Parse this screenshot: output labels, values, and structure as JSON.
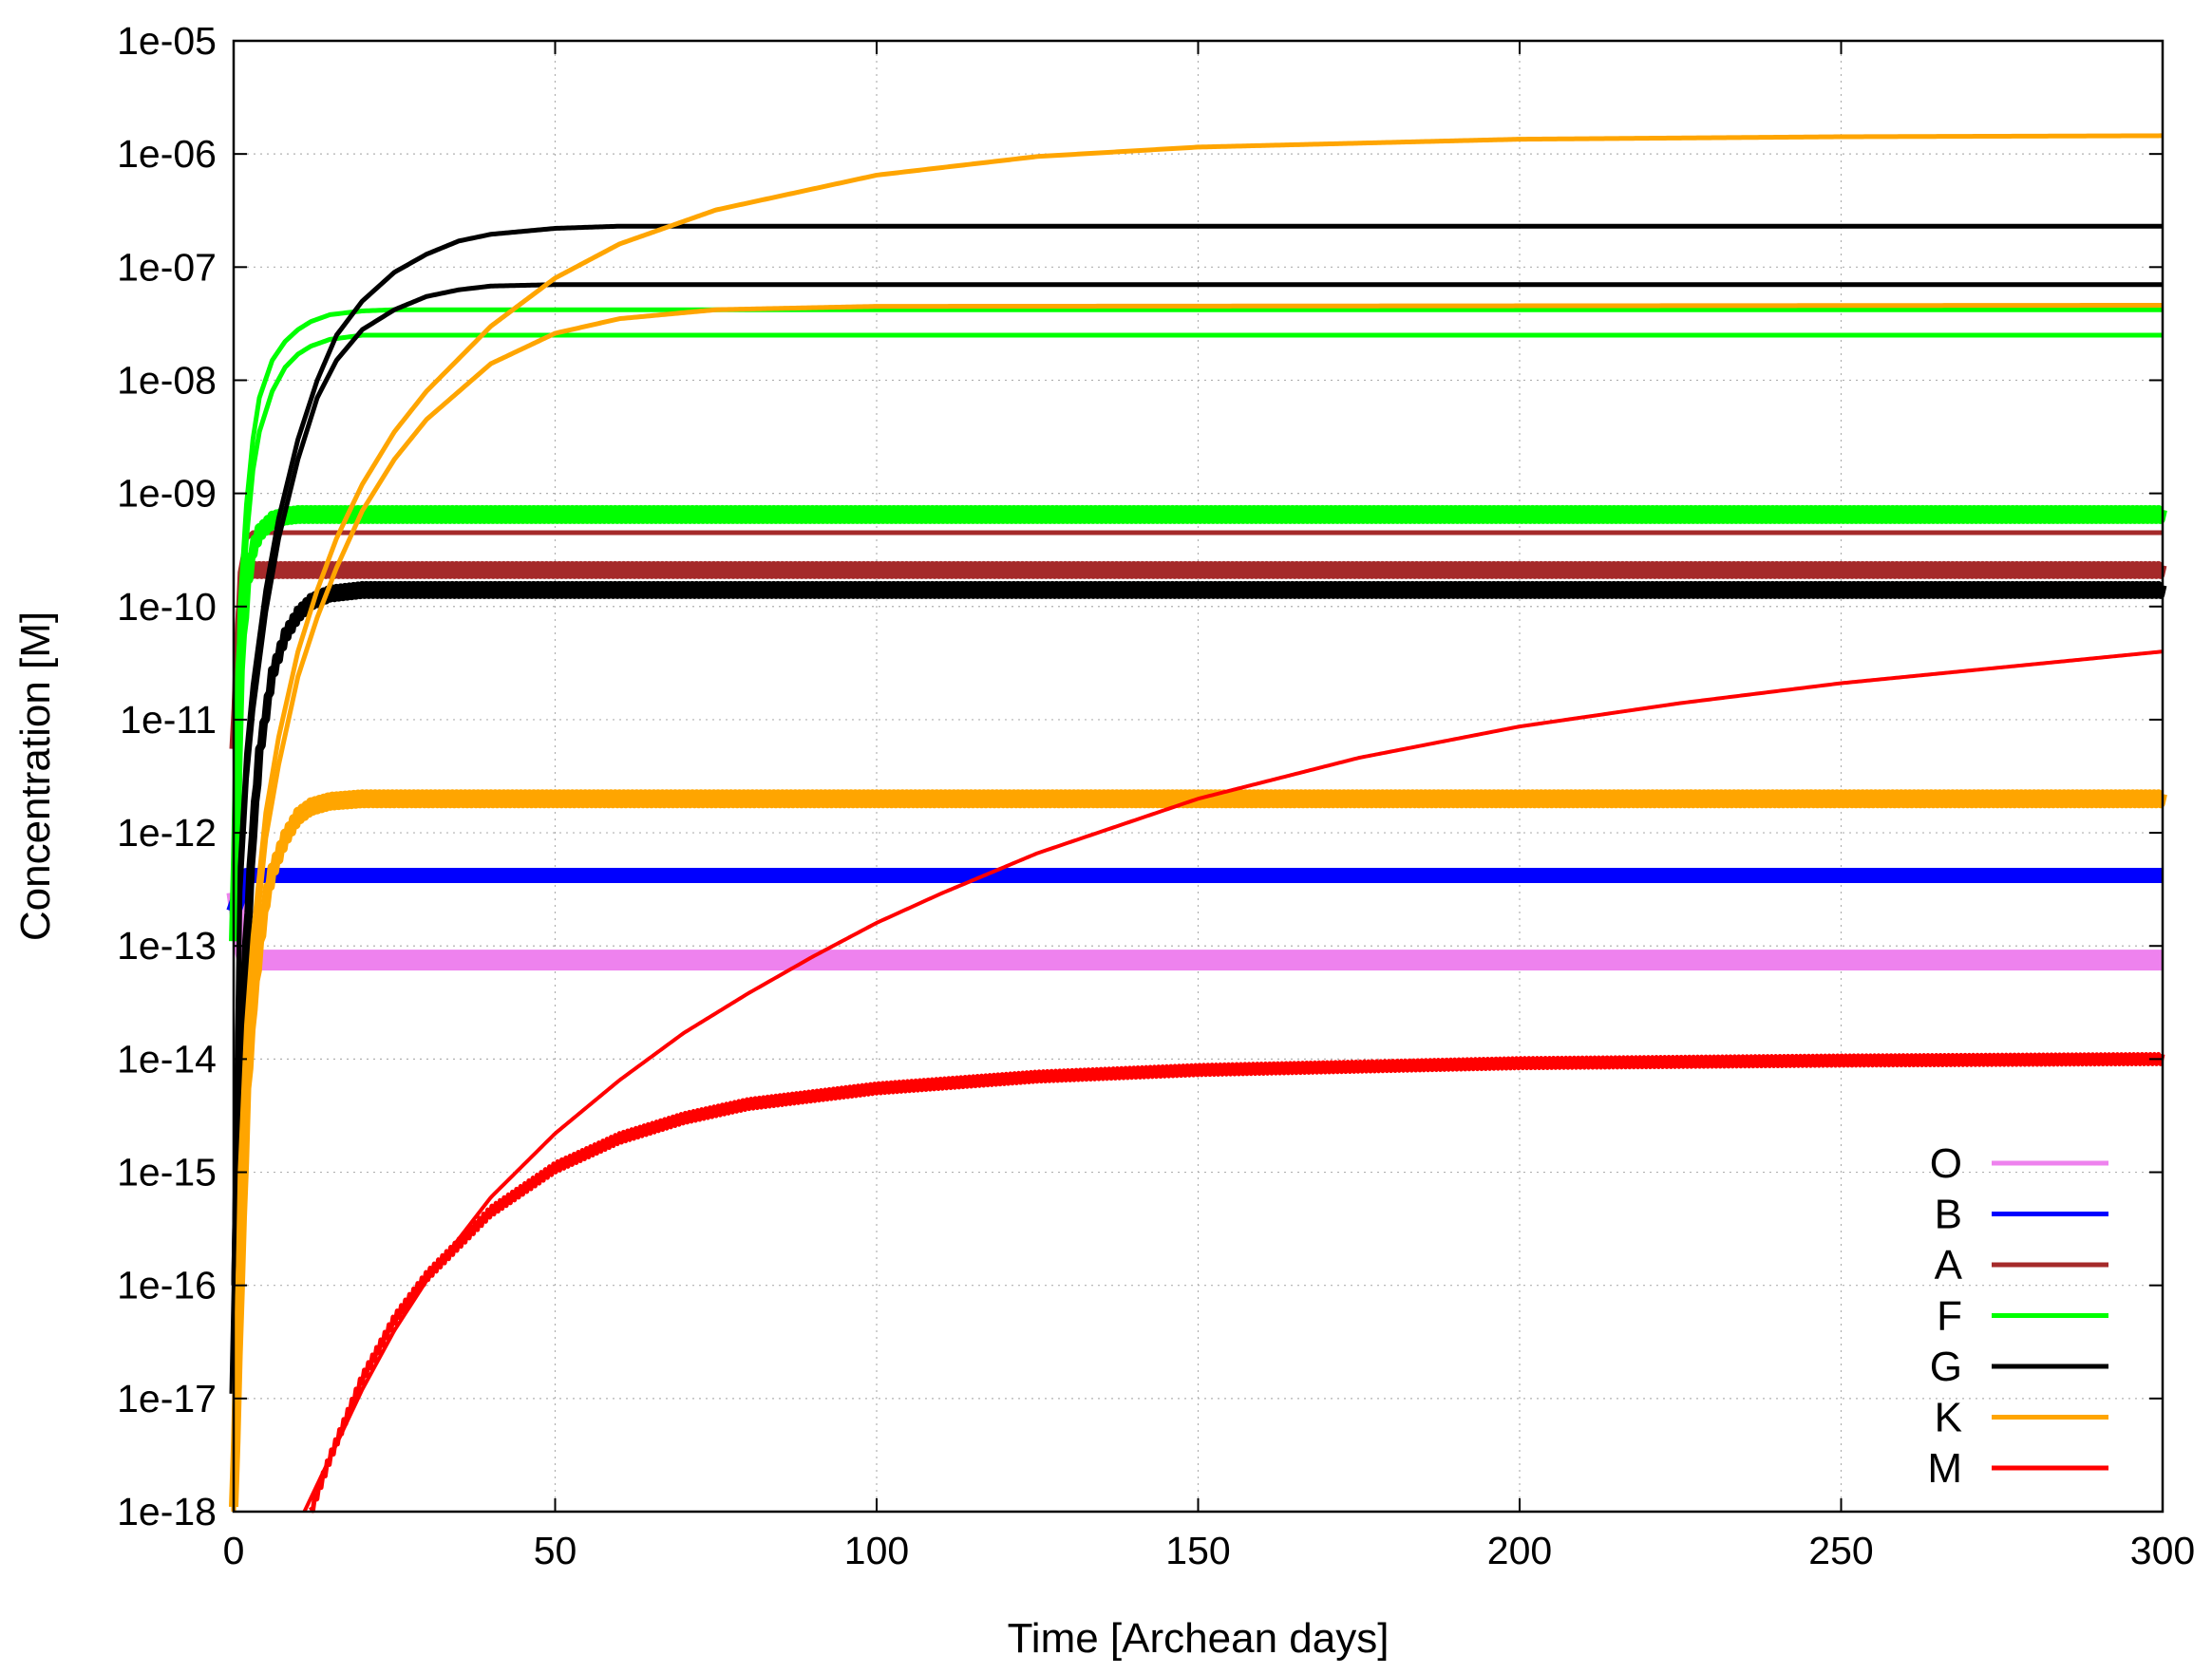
{
  "chart_data": {
    "type": "line",
    "title": "",
    "xlabel": "Time [Archean days]",
    "ylabel": "Concentration [M]",
    "xlim": [
      0,
      300
    ],
    "ylim": [
      1e-18,
      1e-05
    ],
    "y_scale": "log",
    "grid": true,
    "legend_position": "bottom-right",
    "x_ticks": [
      "0",
      "50",
      "100",
      "150",
      "200",
      "250",
      "300"
    ],
    "y_ticks": [
      "1e-18",
      "1e-17",
      "1e-16",
      "1e-15",
      "1e-14",
      "1e-13",
      "1e-12",
      "1e-11",
      "1e-10",
      "1e-09",
      "1e-08",
      "1e-07",
      "1e-06",
      "1e-05"
    ],
    "legend": [
      {
        "name": "O",
        "color": "#ee82ee"
      },
      {
        "name": "B",
        "color": "#0000ff"
      },
      {
        "name": "A",
        "color": "#a52a2a"
      },
      {
        "name": "F",
        "color": "#00ff00"
      },
      {
        "name": "G",
        "color": "#000000"
      },
      {
        "name": "K",
        "color": "#ffa500"
      },
      {
        "name": "M",
        "color": "#ff0000"
      }
    ],
    "series": [
      {
        "name": "O",
        "color": "#ee82ee",
        "width": 22,
        "noisy": false,
        "x": [
          0.5,
          2,
          300
        ],
        "y": [
          3e-13,
          7.5e-14,
          7.5e-14
        ]
      },
      {
        "name": "B",
        "color": "#0000ff",
        "width": 16,
        "noisy": false,
        "x": [
          0,
          2,
          300
        ],
        "y": [
          2e-13,
          4.2e-13,
          4.2e-13
        ]
      },
      {
        "name": "A",
        "color": "#a52a2a",
        "width": 5,
        "noisy": false,
        "x": [
          0,
          1,
          2,
          3,
          300
        ],
        "y": [
          1e-11,
          2e-10,
          4e-10,
          4.5e-10,
          4.5e-10
        ]
      },
      {
        "name": "A",
        "color": "#a52a2a",
        "width": 9,
        "noisy": true,
        "x": [
          0,
          1,
          2,
          3,
          300
        ],
        "y": [
          5e-12,
          1e-10,
          1.8e-10,
          2.1e-10,
          2.1e-10
        ]
      },
      {
        "name": "F",
        "color": "#00ff00",
        "width": 5,
        "noisy": false,
        "x": [
          0,
          1,
          2,
          3,
          4,
          6,
          8,
          10,
          12,
          15,
          20,
          25,
          30,
          40,
          300
        ],
        "y": [
          2e-13,
          1e-10,
          8e-10,
          3e-09,
          7e-09,
          1.5e-08,
          2.2e-08,
          2.8e-08,
          3.3e-08,
          3.8e-08,
          4.1e-08,
          4.2e-08,
          4.2e-08,
          4.2e-08,
          4.2e-08
        ]
      },
      {
        "name": "F",
        "color": "#00ff00",
        "width": 5,
        "noisy": false,
        "x": [
          0,
          1,
          2,
          3,
          4,
          6,
          8,
          10,
          12,
          15,
          20,
          25,
          300
        ],
        "y": [
          2e-13,
          6e-11,
          4e-10,
          1.6e-09,
          3.5e-09,
          8e-09,
          1.3e-08,
          1.7e-08,
          2e-08,
          2.3e-08,
          2.5e-08,
          2.5e-08,
          2.5e-08
        ]
      },
      {
        "name": "F",
        "color": "#00ff00",
        "width": 10,
        "noisy": true,
        "x": [
          0,
          1,
          2,
          3,
          4,
          6,
          8,
          10,
          12,
          300
        ],
        "y": [
          1e-13,
          3e-11,
          1.5e-10,
          3.2e-10,
          4.5e-10,
          5.8e-10,
          6.3e-10,
          6.5e-10,
          6.5e-10,
          6.5e-10
        ]
      },
      {
        "name": "G",
        "color": "#000000",
        "width": 5,
        "noisy": false,
        "x": [
          0,
          1,
          2,
          3,
          5,
          7,
          10,
          13,
          16,
          20,
          25,
          30,
          35,
          40,
          50,
          60,
          300
        ],
        "y": [
          1e-16,
          5e-13,
          5e-12,
          2e-11,
          1.4e-10,
          6e-10,
          3e-09,
          1e-08,
          2.5e-08,
          5e-08,
          9e-08,
          1.3e-07,
          1.7e-07,
          1.95e-07,
          2.2e-07,
          2.3e-07,
          2.3e-07
        ]
      },
      {
        "name": "G",
        "color": "#000000",
        "width": 5,
        "noisy": false,
        "x": [
          0,
          1,
          2,
          3,
          5,
          7,
          10,
          13,
          16,
          20,
          25,
          30,
          35,
          40,
          50,
          300
        ],
        "y": [
          1e-16,
          3e-13,
          3e-12,
          1.2e-11,
          9e-11,
          4e-10,
          2e-09,
          7e-09,
          1.5e-08,
          2.8e-08,
          4.2e-08,
          5.5e-08,
          6.3e-08,
          6.8e-08,
          7e-08,
          7e-08
        ]
      },
      {
        "name": "G",
        "color": "#000000",
        "width": 9,
        "noisy": true,
        "x": [
          0,
          1,
          2,
          3,
          4,
          6,
          8,
          10,
          12,
          15,
          20,
          300
        ],
        "y": [
          1e-17,
          1e-14,
          1e-13,
          1e-12,
          5e-12,
          2.5e-11,
          5.5e-11,
          8.5e-11,
          1.1e-10,
          1.3e-10,
          1.4e-10,
          1.4e-10
        ]
      },
      {
        "name": "K",
        "color": "#ffa500",
        "width": 5,
        "noisy": false,
        "x": [
          0,
          1,
          2,
          3,
          5,
          7,
          10,
          13,
          16,
          20,
          25,
          30,
          40,
          50,
          60,
          75,
          100,
          125,
          150,
          200,
          250,
          300
        ],
        "y": [
          1e-18,
          1e-15,
          2e-14,
          1.2e-13,
          1.5e-12,
          7e-12,
          4e-11,
          1.4e-10,
          4e-10,
          1.2e-09,
          3.5e-09,
          8e-09,
          3e-08,
          8e-08,
          1.6e-07,
          3.2e-07,
          6.5e-07,
          9.5e-07,
          1.15e-06,
          1.35e-06,
          1.42e-06,
          1.45e-06
        ]
      },
      {
        "name": "K",
        "color": "#ffa500",
        "width": 5,
        "noisy": false,
        "x": [
          0,
          1,
          2,
          3,
          5,
          7,
          10,
          13,
          16,
          20,
          25,
          30,
          40,
          50,
          60,
          75,
          100,
          300
        ],
        "y": [
          1e-18,
          5e-16,
          1e-14,
          7e-14,
          9e-13,
          4e-12,
          2.4e-11,
          8e-11,
          2.2e-10,
          7e-10,
          2e-09,
          4.5e-09,
          1.4e-08,
          2.6e-08,
          3.5e-08,
          4.2e-08,
          4.5e-08,
          4.6e-08
        ]
      },
      {
        "name": "K",
        "color": "#ffa500",
        "width": 10,
        "noisy": true,
        "x": [
          0,
          1,
          2,
          3,
          4,
          5,
          6,
          8,
          10,
          12,
          15,
          20,
          300
        ],
        "y": [
          1e-18,
          1e-16,
          5e-15,
          3e-14,
          1e-13,
          2.5e-13,
          4.5e-13,
          9e-13,
          1.4e-12,
          1.7e-12,
          1.9e-12,
          2e-12,
          2e-12
        ]
      },
      {
        "name": "M",
        "color": "#ff0000",
        "width": 4,
        "noisy": false,
        "x": [
          11,
          15,
          20,
          25,
          30,
          40,
          50,
          60,
          70,
          80,
          90,
          100,
          110,
          125,
          150,
          175,
          200,
          225,
          250,
          275,
          300
        ],
        "y": [
          1e-18,
          3e-18,
          1.2e-17,
          4e-17,
          1.1e-16,
          6e-16,
          2.2e-15,
          6.5e-15,
          1.7e-14,
          3.8e-14,
          8e-14,
          1.6e-13,
          2.9e-13,
          6.6e-13,
          2e-12,
          4.6e-12,
          8.7e-12,
          1.4e-11,
          2.1e-11,
          2.9e-11,
          4e-11
        ]
      },
      {
        "name": "M",
        "color": "#ff0000",
        "width": 5,
        "noisy": true,
        "x": [
          12,
          15,
          20,
          25,
          30,
          40,
          50,
          60,
          70,
          80,
          100,
          125,
          150,
          200,
          250,
          300
        ],
        "y": [
          1e-18,
          3e-18,
          1.5e-17,
          5e-17,
          1.2e-16,
          4.5e-16,
          1.1e-15,
          2e-15,
          3e-15,
          4e-15,
          5.5e-15,
          7e-15,
          8e-15,
          9.2e-15,
          9.7e-15,
          1e-14
        ]
      }
    ]
  }
}
